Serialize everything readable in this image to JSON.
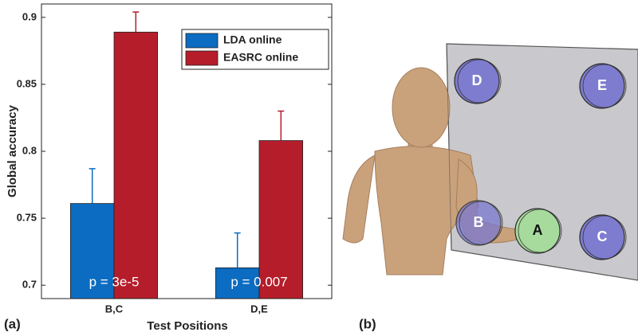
{
  "chart_data": {
    "type": "bar",
    "panel_label": "(a)",
    "x_label": "Test Positions",
    "y_label": "Global accuracy",
    "categories": [
      "B,C",
      "D,E"
    ],
    "series": [
      {
        "name": "LDA online",
        "color": "#0b6cc1",
        "values": [
          0.761,
          0.713
        ],
        "errors": [
          0.026,
          0.026
        ]
      },
      {
        "name": "EASRC online",
        "color": "#b51d2a",
        "values": [
          0.889,
          0.808
        ],
        "errors": [
          0.015,
          0.022
        ]
      }
    ],
    "annotations": [
      "p = 3e-5",
      "p = 0.007"
    ],
    "ylim": [
      0.69,
      0.91
    ],
    "yticks": [
      0.7,
      0.75,
      0.8,
      0.85,
      0.9
    ],
    "grid": false,
    "legend": "upper right"
  },
  "illustration": {
    "panel_label": "(b)",
    "targets": [
      {
        "label": "D",
        "color": "#7a78d0"
      },
      {
        "label": "E",
        "color": "#7a78d0"
      },
      {
        "label": "B",
        "color": "#7a78d0"
      },
      {
        "label": "A",
        "color": "#a6dc9c"
      },
      {
        "label": "C",
        "color": "#7a78d0"
      }
    ]
  }
}
